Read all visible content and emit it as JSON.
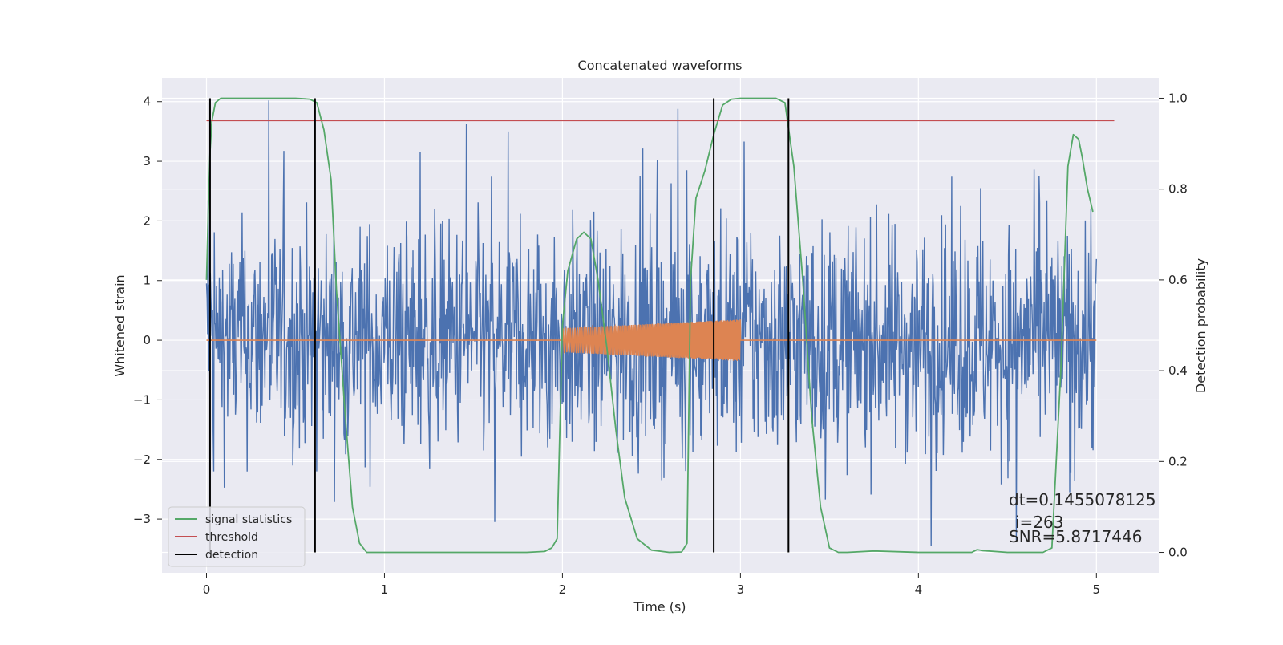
{
  "chart_data": {
    "type": "line",
    "title": "Concatenated waveforms",
    "xlabel": "Time (s)",
    "ylabel": "Whitened strain",
    "y2label": "Detection probability",
    "xlim": [
      -0.25,
      5.35
    ],
    "ylim": [
      -3.9,
      4.4
    ],
    "y2lim": [
      -0.045,
      1.045
    ],
    "xticks": [
      0,
      1,
      2,
      3,
      4,
      5
    ],
    "xtick_labels": [
      "0",
      "1",
      "2",
      "3",
      "4",
      "5"
    ],
    "yticks": [
      -3,
      -2,
      -1,
      0,
      1,
      2,
      3,
      4
    ],
    "ytick_labels": [
      "−3",
      "−2",
      "−1",
      "0",
      "1",
      "2",
      "3",
      "4"
    ],
    "y2ticks": [
      0.0,
      0.2,
      0.4,
      0.6,
      0.8,
      1.0
    ],
    "y2tick_labels": [
      "0.0",
      "0.2",
      "0.4",
      "0.6",
      "0.8",
      "1.0"
    ],
    "grid": true,
    "legend_position": "lower-left",
    "series": [
      {
        "name": "",
        "axis": "left",
        "color": "#4c72b0",
        "kind": "noise",
        "x_range": [
          0,
          5
        ],
        "typical_amplitude": [
          -2.0,
          2.0
        ],
        "peaks": [
          [
            0.01,
            2.35
          ],
          [
            0.04,
            -2.2
          ],
          [
            0.35,
            4.02
          ],
          [
            0.62,
            -2.2
          ],
          [
            1.2,
            3.15
          ],
          [
            1.46,
            3.62
          ],
          [
            1.62,
            -3.05
          ],
          [
            2.65,
            3.88
          ],
          [
            2.7,
            2.85
          ],
          [
            3.02,
            3.33
          ],
          [
            4.07,
            -3.45
          ],
          [
            4.35,
            2.55
          ],
          [
            4.55,
            -3.35
          ],
          [
            4.85,
            -2.55
          ],
          [
            4.97,
            2.2
          ]
        ]
      },
      {
        "name": "",
        "axis": "left",
        "color": "#dd8452",
        "kind": "chirp",
        "baseline": 0,
        "x_range": [
          0,
          5
        ],
        "burst_x": [
          2.0,
          3.0
        ],
        "burst_amplitude_start": 0.2,
        "burst_amplitude_end": 0.35
      },
      {
        "name": "signal statistics",
        "axis": "right",
        "color": "#55a868",
        "x": [
          0.0,
          0.01,
          0.02,
          0.03,
          0.05,
          0.08,
          0.15,
          0.3,
          0.5,
          0.58,
          0.62,
          0.66,
          0.7,
          0.73,
          0.78,
          0.82,
          0.86,
          0.9,
          1.0,
          1.2,
          1.5,
          1.8,
          1.9,
          1.94,
          1.97,
          2.0,
          2.03,
          2.08,
          2.12,
          2.16,
          2.2,
          2.25,
          2.3,
          2.35,
          2.42,
          2.5,
          2.6,
          2.67,
          2.7,
          2.72,
          2.75,
          2.8,
          2.85,
          2.9,
          2.95,
          3.0,
          3.1,
          3.2,
          3.25,
          3.3,
          3.35,
          3.4,
          3.45,
          3.5,
          3.55,
          3.6,
          3.75,
          4.0,
          4.3,
          4.33,
          4.36,
          4.5,
          4.7,
          4.75,
          4.8,
          4.84,
          4.87,
          4.9,
          4.92,
          4.95,
          4.98
        ],
        "values": [
          0.6,
          0.75,
          0.88,
          0.95,
          0.99,
          1.0,
          1.0,
          1.0,
          1.0,
          0.998,
          0.99,
          0.93,
          0.82,
          0.58,
          0.3,
          0.1,
          0.02,
          0.0,
          0.0,
          0.0,
          0.0,
          0.0,
          0.002,
          0.01,
          0.03,
          0.5,
          0.62,
          0.69,
          0.705,
          0.69,
          0.6,
          0.45,
          0.27,
          0.12,
          0.03,
          0.005,
          0.0,
          0.001,
          0.02,
          0.6,
          0.78,
          0.84,
          0.92,
          0.985,
          0.998,
          1.0,
          1.0,
          1.0,
          0.99,
          0.85,
          0.6,
          0.3,
          0.1,
          0.01,
          0.0,
          0.0,
          0.003,
          0.0,
          0.0,
          0.006,
          0.004,
          0.0,
          0.0,
          0.01,
          0.4,
          0.85,
          0.92,
          0.91,
          0.87,
          0.8,
          0.75
        ]
      },
      {
        "name": "threshold",
        "axis": "right",
        "color": "#c44e52",
        "x": [
          0,
          5.1
        ],
        "values": [
          0.951,
          0.951
        ]
      },
      {
        "name": "detection",
        "axis": "right",
        "color": "#000000",
        "kind": "vlines",
        "x": [
          0.02,
          0.61,
          2.85,
          3.27
        ],
        "ymin": 0.0,
        "ymax": 1.0
      }
    ],
    "annotations": [
      "dt=0.1455078125",
      "i=263",
      "SNR=5.8717446"
    ]
  }
}
